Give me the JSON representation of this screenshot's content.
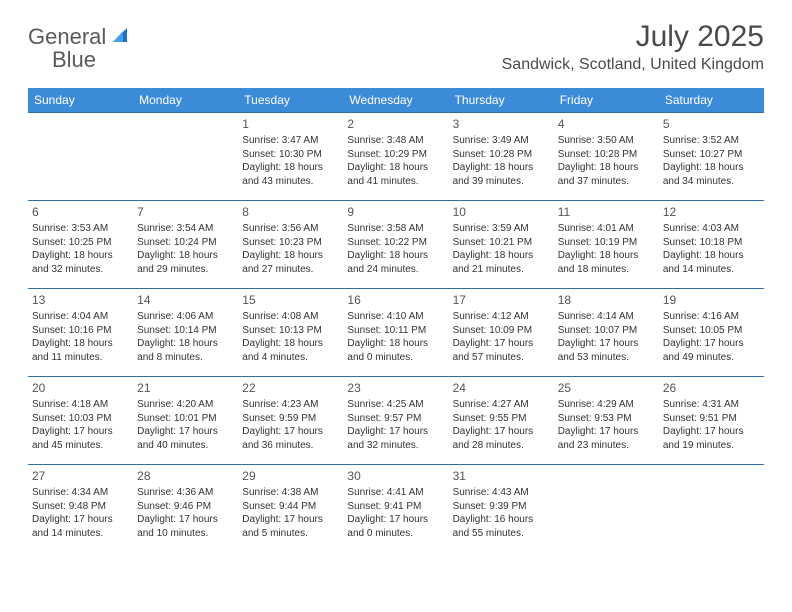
{
  "brand": {
    "name1": "General",
    "name2": "Blue",
    "text_color": "#5a5a5a",
    "accent_color": "#2f7bd9"
  },
  "title": "July 2025",
  "location": "Sandwick, Scotland, United Kingdom",
  "colors": {
    "header_bg": "#3b8bd8",
    "header_text": "#ffffff",
    "cell_border": "#2f6ea8",
    "body_text": "#333333",
    "background": "#ffffff"
  },
  "typography": {
    "title_fontsize": 30,
    "location_fontsize": 16,
    "dayhead_fontsize": 12,
    "daynum_fontsize": 12,
    "body_fontsize": 10
  },
  "day_names": [
    "Sunday",
    "Monday",
    "Tuesday",
    "Wednesday",
    "Thursday",
    "Friday",
    "Saturday"
  ],
  "weeks": [
    [
      null,
      null,
      {
        "n": "1",
        "sunrise": "Sunrise: 3:47 AM",
        "sunset": "Sunset: 10:30 PM",
        "day1": "Daylight: 18 hours",
        "day2": "and 43 minutes."
      },
      {
        "n": "2",
        "sunrise": "Sunrise: 3:48 AM",
        "sunset": "Sunset: 10:29 PM",
        "day1": "Daylight: 18 hours",
        "day2": "and 41 minutes."
      },
      {
        "n": "3",
        "sunrise": "Sunrise: 3:49 AM",
        "sunset": "Sunset: 10:28 PM",
        "day1": "Daylight: 18 hours",
        "day2": "and 39 minutes."
      },
      {
        "n": "4",
        "sunrise": "Sunrise: 3:50 AM",
        "sunset": "Sunset: 10:28 PM",
        "day1": "Daylight: 18 hours",
        "day2": "and 37 minutes."
      },
      {
        "n": "5",
        "sunrise": "Sunrise: 3:52 AM",
        "sunset": "Sunset: 10:27 PM",
        "day1": "Daylight: 18 hours",
        "day2": "and 34 minutes."
      }
    ],
    [
      {
        "n": "6",
        "sunrise": "Sunrise: 3:53 AM",
        "sunset": "Sunset: 10:25 PM",
        "day1": "Daylight: 18 hours",
        "day2": "and 32 minutes."
      },
      {
        "n": "7",
        "sunrise": "Sunrise: 3:54 AM",
        "sunset": "Sunset: 10:24 PM",
        "day1": "Daylight: 18 hours",
        "day2": "and 29 minutes."
      },
      {
        "n": "8",
        "sunrise": "Sunrise: 3:56 AM",
        "sunset": "Sunset: 10:23 PM",
        "day1": "Daylight: 18 hours",
        "day2": "and 27 minutes."
      },
      {
        "n": "9",
        "sunrise": "Sunrise: 3:58 AM",
        "sunset": "Sunset: 10:22 PM",
        "day1": "Daylight: 18 hours",
        "day2": "and 24 minutes."
      },
      {
        "n": "10",
        "sunrise": "Sunrise: 3:59 AM",
        "sunset": "Sunset: 10:21 PM",
        "day1": "Daylight: 18 hours",
        "day2": "and 21 minutes."
      },
      {
        "n": "11",
        "sunrise": "Sunrise: 4:01 AM",
        "sunset": "Sunset: 10:19 PM",
        "day1": "Daylight: 18 hours",
        "day2": "and 18 minutes."
      },
      {
        "n": "12",
        "sunrise": "Sunrise: 4:03 AM",
        "sunset": "Sunset: 10:18 PM",
        "day1": "Daylight: 18 hours",
        "day2": "and 14 minutes."
      }
    ],
    [
      {
        "n": "13",
        "sunrise": "Sunrise: 4:04 AM",
        "sunset": "Sunset: 10:16 PM",
        "day1": "Daylight: 18 hours",
        "day2": "and 11 minutes."
      },
      {
        "n": "14",
        "sunrise": "Sunrise: 4:06 AM",
        "sunset": "Sunset: 10:14 PM",
        "day1": "Daylight: 18 hours",
        "day2": "and 8 minutes."
      },
      {
        "n": "15",
        "sunrise": "Sunrise: 4:08 AM",
        "sunset": "Sunset: 10:13 PM",
        "day1": "Daylight: 18 hours",
        "day2": "and 4 minutes."
      },
      {
        "n": "16",
        "sunrise": "Sunrise: 4:10 AM",
        "sunset": "Sunset: 10:11 PM",
        "day1": "Daylight: 18 hours",
        "day2": "and 0 minutes."
      },
      {
        "n": "17",
        "sunrise": "Sunrise: 4:12 AM",
        "sunset": "Sunset: 10:09 PM",
        "day1": "Daylight: 17 hours",
        "day2": "and 57 minutes."
      },
      {
        "n": "18",
        "sunrise": "Sunrise: 4:14 AM",
        "sunset": "Sunset: 10:07 PM",
        "day1": "Daylight: 17 hours",
        "day2": "and 53 minutes."
      },
      {
        "n": "19",
        "sunrise": "Sunrise: 4:16 AM",
        "sunset": "Sunset: 10:05 PM",
        "day1": "Daylight: 17 hours",
        "day2": "and 49 minutes."
      }
    ],
    [
      {
        "n": "20",
        "sunrise": "Sunrise: 4:18 AM",
        "sunset": "Sunset: 10:03 PM",
        "day1": "Daylight: 17 hours",
        "day2": "and 45 minutes."
      },
      {
        "n": "21",
        "sunrise": "Sunrise: 4:20 AM",
        "sunset": "Sunset: 10:01 PM",
        "day1": "Daylight: 17 hours",
        "day2": "and 40 minutes."
      },
      {
        "n": "22",
        "sunrise": "Sunrise: 4:23 AM",
        "sunset": "Sunset: 9:59 PM",
        "day1": "Daylight: 17 hours",
        "day2": "and 36 minutes."
      },
      {
        "n": "23",
        "sunrise": "Sunrise: 4:25 AM",
        "sunset": "Sunset: 9:57 PM",
        "day1": "Daylight: 17 hours",
        "day2": "and 32 minutes."
      },
      {
        "n": "24",
        "sunrise": "Sunrise: 4:27 AM",
        "sunset": "Sunset: 9:55 PM",
        "day1": "Daylight: 17 hours",
        "day2": "and 28 minutes."
      },
      {
        "n": "25",
        "sunrise": "Sunrise: 4:29 AM",
        "sunset": "Sunset: 9:53 PM",
        "day1": "Daylight: 17 hours",
        "day2": "and 23 minutes."
      },
      {
        "n": "26",
        "sunrise": "Sunrise: 4:31 AM",
        "sunset": "Sunset: 9:51 PM",
        "day1": "Daylight: 17 hours",
        "day2": "and 19 minutes."
      }
    ],
    [
      {
        "n": "27",
        "sunrise": "Sunrise: 4:34 AM",
        "sunset": "Sunset: 9:48 PM",
        "day1": "Daylight: 17 hours",
        "day2": "and 14 minutes."
      },
      {
        "n": "28",
        "sunrise": "Sunrise: 4:36 AM",
        "sunset": "Sunset: 9:46 PM",
        "day1": "Daylight: 17 hours",
        "day2": "and 10 minutes."
      },
      {
        "n": "29",
        "sunrise": "Sunrise: 4:38 AM",
        "sunset": "Sunset: 9:44 PM",
        "day1": "Daylight: 17 hours",
        "day2": "and 5 minutes."
      },
      {
        "n": "30",
        "sunrise": "Sunrise: 4:41 AM",
        "sunset": "Sunset: 9:41 PM",
        "day1": "Daylight: 17 hours",
        "day2": "and 0 minutes."
      },
      {
        "n": "31",
        "sunrise": "Sunrise: 4:43 AM",
        "sunset": "Sunset: 9:39 PM",
        "day1": "Daylight: 16 hours",
        "day2": "and 55 minutes."
      },
      null,
      null
    ]
  ]
}
